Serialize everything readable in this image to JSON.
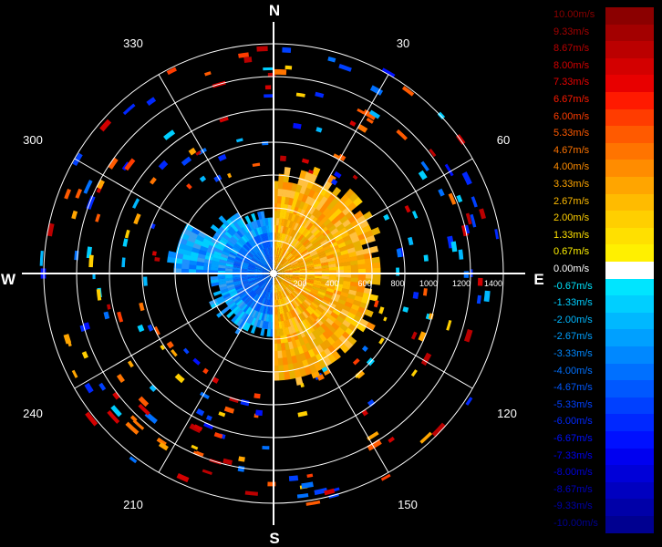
{
  "display": {
    "compass": {
      "north": "N",
      "east": "E",
      "south": "S",
      "west": "W"
    },
    "degree_labels": [
      "30",
      "60",
      "120",
      "150",
      "210",
      "240",
      "300",
      "330"
    ],
    "range_labels": [
      "200",
      "400",
      "600",
      "800",
      "1000",
      "1200",
      "1400"
    ],
    "range_max": 1400
  },
  "legend": {
    "entries": [
      {
        "label": "10.00m/s",
        "color": "#8b0000"
      },
      {
        "label": "9.33m/s",
        "color": "#a30000"
      },
      {
        "label": "8.67m/s",
        "color": "#bb0000"
      },
      {
        "label": "8.00m/s",
        "color": "#d30000"
      },
      {
        "label": "7.33m/s",
        "color": "#e80000"
      },
      {
        "label": "6.67m/s",
        "color": "#ff1a00"
      },
      {
        "label": "6.00m/s",
        "color": "#ff3c00"
      },
      {
        "label": "5.33m/s",
        "color": "#ff5a00"
      },
      {
        "label": "4.67m/s",
        "color": "#ff7400"
      },
      {
        "label": "4.00m/s",
        "color": "#ff8c00"
      },
      {
        "label": "3.33m/s",
        "color": "#ffa500"
      },
      {
        "label": "2.67m/s",
        "color": "#ffbb00"
      },
      {
        "label": "2.00m/s",
        "color": "#ffcf00"
      },
      {
        "label": "1.33m/s",
        "color": "#ffe000"
      },
      {
        "label": "0.67m/s",
        "color": "#fff000"
      },
      {
        "label": "0.00m/s",
        "color": "#ffffff"
      },
      {
        "label": "-0.67m/s",
        "color": "#00e5ff"
      },
      {
        "label": "-1.33m/s",
        "color": "#00cfff"
      },
      {
        "label": "-2.00m/s",
        "color": "#00b8ff"
      },
      {
        "label": "-2.67m/s",
        "color": "#00a0ff"
      },
      {
        "label": "-3.33m/s",
        "color": "#0088ff"
      },
      {
        "label": "-4.00m/s",
        "color": "#0070ff"
      },
      {
        "label": "-4.67m/s",
        "color": "#0058ff"
      },
      {
        "label": "-5.33m/s",
        "color": "#0040ff"
      },
      {
        "label": "-6.00m/s",
        "color": "#0028ff"
      },
      {
        "label": "-6.67m/s",
        "color": "#0010ff"
      },
      {
        "label": "-7.33m/s",
        "color": "#0000f0"
      },
      {
        "label": "-8.00m/s",
        "color": "#0000d8"
      },
      {
        "label": "-8.67m/s",
        "color": "#0000c0"
      },
      {
        "label": "-9.33m/s",
        "color": "#0000a8"
      },
      {
        "label": "-10.00m/s",
        "color": "#000090"
      }
    ]
  }
}
